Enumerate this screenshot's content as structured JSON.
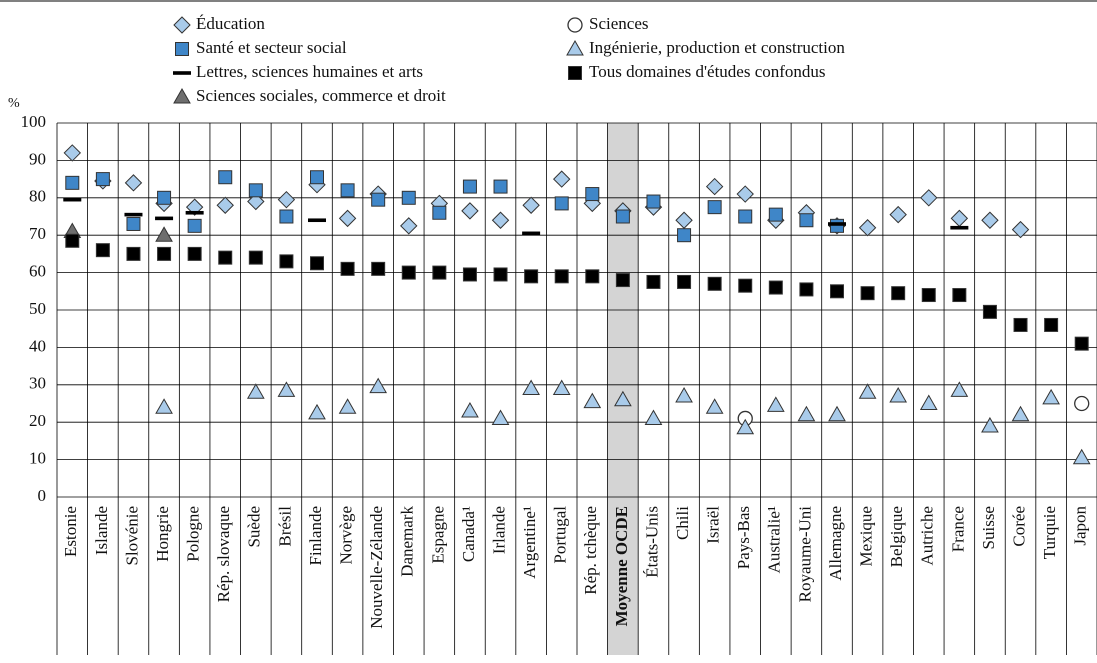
{
  "chart_data": {
    "type": "dot",
    "y_label": "%",
    "categories": [
      "Estonie",
      "Islande",
      "Slovénie",
      "Hongrie",
      "Pologne",
      "Rép. slovaque",
      "Suède",
      "Brésil",
      "Finlande",
      "Norvège",
      "Nouvelle-Zélande",
      "Danemark",
      "Espagne",
      "Canada¹",
      "Irlande",
      "Argentine¹",
      "Portugal",
      "Rép. tchèque",
      "Moyenne OCDE",
      "États-Unis",
      "Chili",
      "Israël",
      "Pays-Bas",
      "Australie¹",
      "Royaume-Uni",
      "Allemagne",
      "Mexique",
      "Belgique",
      "Autriche",
      "France",
      "Suisse",
      "Corée",
      "Turquie",
      "Japon"
    ],
    "highlight_index": 18,
    "ylim": [
      0,
      100
    ],
    "yticks": [
      0,
      10,
      20,
      30,
      40,
      50,
      60,
      70,
      80,
      90,
      100
    ],
    "grid": true,
    "series": [
      {
        "name": "Éducation",
        "marker": "diamond",
        "color": "#a9cbea",
        "values": [
          92,
          84.5,
          84,
          78.5,
          77.5,
          78,
          79,
          79.5,
          83.5,
          74.5,
          81,
          72.5,
          78.5,
          76.5,
          74,
          78,
          85,
          78.5,
          76.5,
          77.5,
          74,
          83,
          81,
          74,
          76,
          72.5,
          72,
          75.5,
          80,
          74.5,
          74,
          71.5,
          null,
          null
        ]
      },
      {
        "name": "Santé et secteur social",
        "marker": "square",
        "color": "#3f86c8",
        "values": [
          84,
          85,
          73,
          80,
          72.5,
          85.5,
          82,
          75,
          85.5,
          82,
          79.5,
          80,
          76,
          83,
          83,
          null,
          78.5,
          81,
          75,
          79,
          70,
          77.5,
          75,
          75.5,
          74,
          72.5,
          null,
          null,
          null,
          null,
          null,
          null,
          null,
          null
        ]
      },
      {
        "name": "Lettres, sciences humaines et arts",
        "marker": "dash",
        "color": "#000000",
        "values": [
          79.5,
          null,
          75.5,
          74.5,
          76,
          null,
          null,
          null,
          74,
          null,
          null,
          null,
          null,
          null,
          null,
          70.5,
          null,
          null,
          null,
          null,
          null,
          null,
          null,
          null,
          null,
          73,
          null,
          null,
          null,
          72,
          null,
          null,
          null,
          null
        ]
      },
      {
        "name": "Sciences sociales, commerce et droit",
        "marker": "triangle",
        "color": "#6e6e6e",
        "values": [
          71,
          null,
          null,
          70,
          null,
          null,
          null,
          null,
          null,
          null,
          null,
          null,
          null,
          null,
          null,
          null,
          null,
          null,
          null,
          null,
          null,
          null,
          null,
          null,
          null,
          null,
          null,
          null,
          null,
          null,
          null,
          null,
          null,
          null
        ]
      },
      {
        "name": "Sciences",
        "marker": "circle",
        "color": "#ffffff",
        "values": [
          null,
          null,
          null,
          null,
          null,
          null,
          null,
          null,
          null,
          null,
          null,
          null,
          null,
          null,
          null,
          null,
          null,
          null,
          null,
          null,
          null,
          null,
          21,
          null,
          null,
          null,
          null,
          null,
          null,
          null,
          null,
          null,
          null,
          25
        ]
      },
      {
        "name": "Ingénierie, production et construction",
        "marker": "triangle",
        "color": "#a9cbea",
        "values": [
          null,
          null,
          null,
          24,
          null,
          null,
          28,
          28.5,
          22.5,
          24,
          29.5,
          null,
          null,
          23,
          21,
          29,
          29,
          25.5,
          26,
          21,
          27,
          24,
          18.5,
          24.5,
          22,
          22,
          28,
          27,
          25,
          28.5,
          19,
          22,
          26.5,
          10.5
        ]
      },
      {
        "name": "Tous domaines d'études confondus",
        "marker": "square",
        "color": "#000000",
        "values": [
          68.5,
          66,
          65,
          65,
          65,
          64,
          64,
          63,
          62.5,
          61,
          61,
          60,
          60,
          59.5,
          59.5,
          59,
          59,
          59,
          58,
          57.5,
          57.5,
          57,
          56.5,
          56,
          55.5,
          55,
          54.5,
          54.5,
          54,
          54,
          49.5,
          46,
          46,
          41
        ]
      }
    ]
  }
}
